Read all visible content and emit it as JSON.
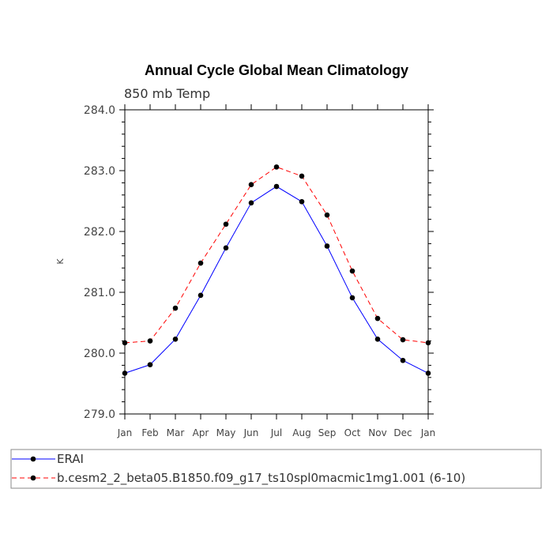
{
  "chart_data": {
    "type": "line",
    "title": "Annual Cycle Global Mean Climatology",
    "subtitle": "850 mb Temp",
    "xlabel": "",
    "ylabel": "K",
    "categories": [
      "Jan",
      "Feb",
      "Mar",
      "Apr",
      "May",
      "Jun",
      "Jul",
      "Aug",
      "Sep",
      "Oct",
      "Nov",
      "Dec",
      "Jan"
    ],
    "ylim": [
      279.0,
      284.0
    ],
    "yticks": [
      "279.0",
      "280.0",
      "281.0",
      "282.0",
      "283.0",
      "284.0"
    ],
    "grid": false,
    "legend_position": "bottom",
    "series": [
      {
        "name": "ERAI",
        "color": "#0000ff",
        "dash": "solid",
        "values": [
          279.67,
          279.81,
          280.23,
          280.95,
          281.73,
          282.47,
          282.74,
          282.49,
          281.76,
          280.91,
          280.23,
          279.88,
          279.67
        ]
      },
      {
        "name": "b.cesm2_2_beta05.B1850.f09_g17_ts10spl0macmic1mg1.001 (6-10)",
        "color": "#ff0000",
        "dash": "dashed",
        "values": [
          280.17,
          280.2,
          280.74,
          281.48,
          282.12,
          282.77,
          283.06,
          282.91,
          282.27,
          281.35,
          280.57,
          280.22,
          280.17
        ]
      }
    ]
  }
}
